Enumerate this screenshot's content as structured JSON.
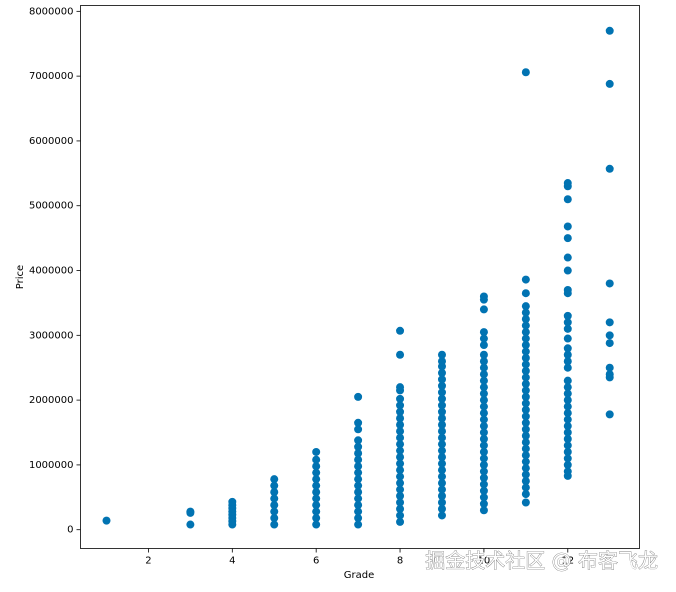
{
  "chart_data": {
    "type": "scatter",
    "x_label": "Grade",
    "y_label": "Price",
    "color": "#0173b2",
    "x": [
      1,
      3,
      3,
      3,
      4,
      4,
      4,
      4,
      4,
      4,
      4,
      4,
      5,
      5,
      5,
      5,
      5,
      5,
      5,
      5,
      6,
      6,
      6,
      6,
      6,
      6,
      6,
      6,
      6,
      6,
      6,
      6,
      7,
      7,
      7,
      7,
      7,
      7,
      7,
      7,
      7,
      7,
      7,
      7,
      7,
      7,
      7,
      7,
      7,
      8,
      8,
      8,
      8,
      8,
      8,
      8,
      8,
      8,
      8,
      8,
      8,
      8,
      8,
      8,
      8,
      8,
      8,
      8,
      8,
      8,
      8,
      8,
      8,
      9,
      9,
      9,
      9,
      9,
      9,
      9,
      9,
      9,
      9,
      9,
      9,
      9,
      9,
      9,
      9,
      9,
      9,
      9,
      9,
      9,
      9,
      9,
      9,
      9,
      9,
      10,
      10,
      10,
      10,
      10,
      10,
      10,
      10,
      10,
      10,
      10,
      10,
      10,
      10,
      10,
      10,
      10,
      10,
      10,
      10,
      10,
      10,
      10,
      10,
      10,
      10,
      10,
      10,
      10,
      10,
      10,
      11,
      11,
      11,
      11,
      11,
      11,
      11,
      11,
      11,
      11,
      11,
      11,
      11,
      11,
      11,
      11,
      11,
      11,
      11,
      11,
      11,
      11,
      11,
      11,
      11,
      11,
      11,
      11,
      11,
      11,
      11,
      11,
      11,
      11,
      12,
      12,
      12,
      12,
      12,
      12,
      12,
      12,
      12,
      12,
      12,
      12,
      12,
      12,
      12,
      12,
      12,
      12,
      12,
      12,
      12,
      12,
      12,
      12,
      12,
      12,
      12,
      12,
      12,
      12,
      12,
      12,
      12,
      13,
      13,
      13,
      13,
      13,
      13,
      13,
      13,
      13,
      13,
      13
    ],
    "values": [
      140000,
      80000,
      260000,
      280000,
      80000,
      130000,
      180000,
      230000,
      280000,
      330000,
      380000,
      430000,
      80000,
      180000,
      280000,
      380000,
      480000,
      580000,
      680000,
      780000,
      80000,
      180000,
      280000,
      380000,
      480000,
      580000,
      680000,
      780000,
      880000,
      980000,
      1080000,
      1200000,
      80000,
      180000,
      280000,
      380000,
      480000,
      580000,
      680000,
      780000,
      880000,
      980000,
      1080000,
      1180000,
      1280000,
      1380000,
      1550000,
      1650000,
      2050000,
      120000,
      220000,
      320000,
      420000,
      520000,
      620000,
      720000,
      820000,
      920000,
      1020000,
      1120000,
      1220000,
      1320000,
      1420000,
      1520000,
      1620000,
      1720000,
      1820000,
      1920000,
      2020000,
      2150000,
      2200000,
      2700000,
      3070000,
      220000,
      320000,
      420000,
      520000,
      620000,
      720000,
      820000,
      920000,
      1020000,
      1120000,
      1220000,
      1320000,
      1420000,
      1520000,
      1620000,
      1720000,
      1820000,
      1920000,
      2020000,
      2120000,
      2220000,
      2320000,
      2420000,
      2520000,
      2600000,
      2700000,
      300000,
      400000,
      500000,
      600000,
      700000,
      800000,
      900000,
      1000000,
      1100000,
      1200000,
      1300000,
      1400000,
      1500000,
      1600000,
      1700000,
      1800000,
      1900000,
      2000000,
      2100000,
      2200000,
      2300000,
      2400000,
      2500000,
      2600000,
      2700000,
      2850000,
      2950000,
      3050000,
      3400000,
      3550000,
      3600000,
      420000,
      550000,
      650000,
      750000,
      850000,
      950000,
      1050000,
      1150000,
      1250000,
      1350000,
      1450000,
      1550000,
      1650000,
      1750000,
      1850000,
      1950000,
      2050000,
      2150000,
      2250000,
      2350000,
      2450000,
      2550000,
      2650000,
      2750000,
      2850000,
      2950000,
      3050000,
      3150000,
      3250000,
      3350000,
      3450000,
      3650000,
      3860000,
      7060000,
      830000,
      900000,
      1000000,
      1100000,
      1200000,
      1300000,
      1400000,
      1500000,
      1600000,
      1700000,
      1800000,
      1900000,
      2000000,
      2100000,
      2200000,
      2300000,
      2500000,
      2600000,
      2700000,
      2800000,
      2950000,
      3100000,
      3200000,
      3300000,
      3650000,
      3700000,
      4000000,
      4200000,
      4500000,
      4680000,
      5100000,
      5300000,
      5350000,
      1780000,
      2350000,
      2400000,
      2500000,
      2880000,
      3000000,
      3200000,
      3800000,
      5570000,
      6880000,
      7700000
    ],
    "xlim": [
      0.38,
      13.71
    ],
    "xticks": [
      2,
      4,
      6,
      8,
      10,
      12
    ],
    "ylim": [
      -290000,
      8090000
    ],
    "yticks": [
      0,
      1000000,
      2000000,
      3000000,
      4000000,
      5000000,
      6000000,
      7000000,
      8000000
    ],
    "watermark": "掘金技术社区 @ 布客飞龙"
  }
}
